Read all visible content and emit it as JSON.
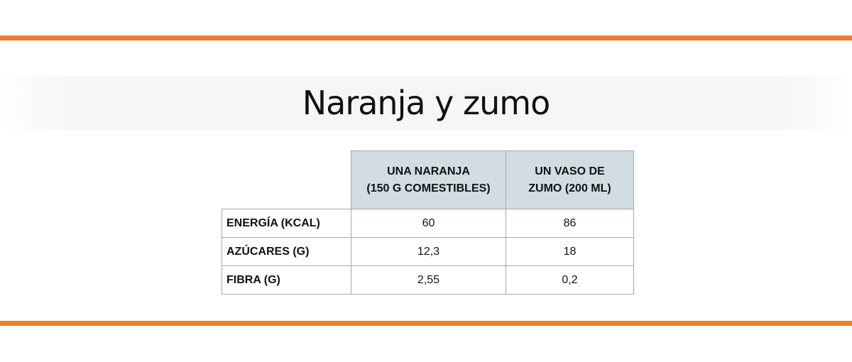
{
  "title": "Naranja y zumo",
  "colors": {
    "accent": "#f07d2c",
    "header_bg": "#d1dde3"
  },
  "table": {
    "headers": [
      "UNA NARANJA\n(150 G COMESTIBLES)",
      "UN VASO DE\nZUMO (200 ML)"
    ],
    "header_lines": [
      [
        "UNA NARANJA",
        "(150 G COMESTIBLES)"
      ],
      [
        "UN VASO DE",
        "ZUMO (200 ML)"
      ]
    ],
    "rows": [
      {
        "label": "ENERGÍA (KCAL)",
        "values": [
          "60",
          "86"
        ]
      },
      {
        "label": "AZÚCARES (G)",
        "values": [
          "12,3",
          "18"
        ]
      },
      {
        "label": "FIBRA (G)",
        "values": [
          "2,55",
          "0,2"
        ]
      }
    ]
  }
}
